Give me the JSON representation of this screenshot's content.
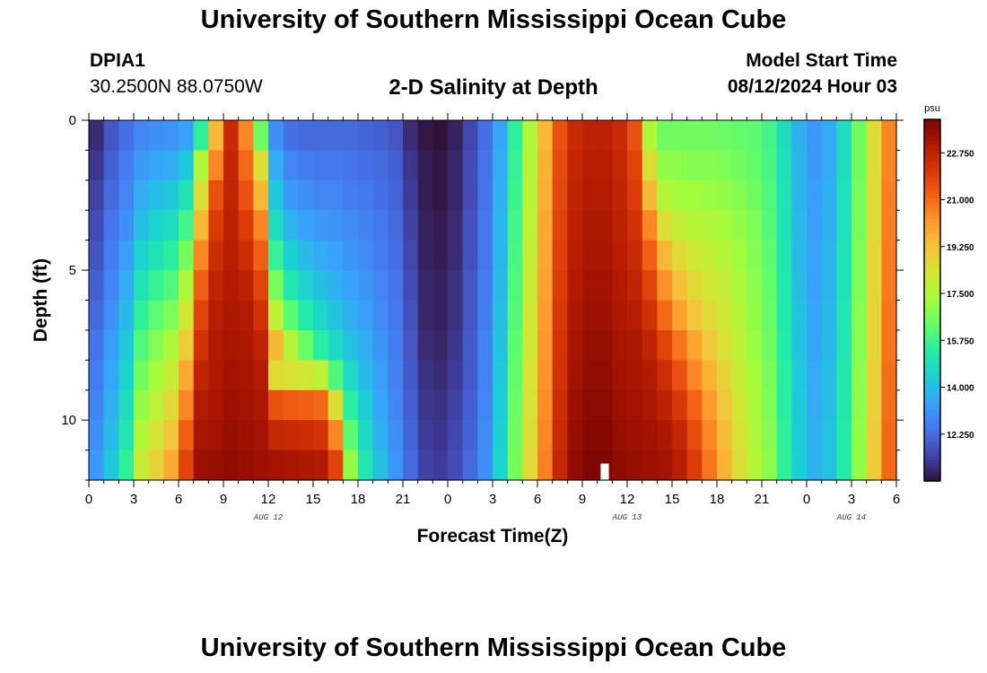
{
  "header": {
    "title": "University of Southern Mississippi Ocean Cube",
    "station_id": "DPIA1",
    "coordinates": "30.2500N  88.0750W",
    "subtitle": "2-D Salinity at Depth",
    "model_start_label": "Model Start Time",
    "model_start_value": "08/12/2024 Hour 03"
  },
  "footer": {
    "title": "University of Southern Mississippi Ocean Cube"
  },
  "colors": {
    "cmap_stops": [
      "#30123b",
      "#4145ab",
      "#4675ed",
      "#39a2fc",
      "#1bcfd4",
      "#24eca6",
      "#61fc6c",
      "#a4fc3b",
      "#d1e834",
      "#f3c63a",
      "#fe9b2d",
      "#f36315",
      "#d93806",
      "#b11901",
      "#7a0403"
    ],
    "missing_cell": "#ffffff"
  },
  "chart_data": {
    "type": "heatmap",
    "title": "2-D Salinity at Depth",
    "xlabel": "Forecast Time(Z)",
    "ylabel": "Depth (ft)",
    "x_range_hours": [
      0,
      54
    ],
    "x_tick_hours": [
      0,
      3,
      6,
      9,
      12,
      15,
      18,
      21,
      24,
      27,
      30,
      33,
      36,
      39,
      42,
      45,
      48,
      51,
      54
    ],
    "x_tick_labels": [
      "0",
      "3",
      "6",
      "9",
      "12",
      "15",
      "18",
      "21",
      "0",
      "3",
      "6",
      "9",
      "12",
      "15",
      "18",
      "21",
      "0",
      "3",
      "6"
    ],
    "date_labels": [
      {
        "hour": 12,
        "text": "AUG 12"
      },
      {
        "hour": 36,
        "text": "AUG 13"
      },
      {
        "hour": 51,
        "text": "AUG 14"
      }
    ],
    "y_range_ft": [
      0,
      12
    ],
    "y_tick_values": [
      0,
      5,
      10
    ],
    "y_tick_labels": [
      "0",
      "5",
      "10"
    ],
    "depth_levels_ft": [
      0.5,
      1.5,
      2.5,
      3.5,
      4.5,
      5.5,
      6.5,
      7.5,
      8.5,
      9.5,
      10.5,
      11.5
    ],
    "time_step_hours": 1,
    "colorbar": {
      "unit": "psu",
      "min": 10.5,
      "max": 24.0,
      "tick_values": [
        12.25,
        14.0,
        15.75,
        17.5,
        19.25,
        21.0,
        22.75
      ],
      "tick_labels": [
        "12.250",
        "14.000",
        "15.750",
        "17.500",
        "19.250",
        "21.000",
        "22.750"
      ]
    },
    "salinity_psu": [
      [
        11.0,
        11.8,
        12.3,
        12.8,
        13.0,
        13.1,
        13.4,
        15.5,
        19.5,
        22.5,
        20.5,
        16.5,
        13.0,
        12.3,
        12.2,
        12.2,
        12.2,
        12.2,
        12.1,
        12.0,
        11.8,
        11.0,
        10.6,
        10.5,
        10.8,
        11.5,
        12.3,
        13.5,
        15.5,
        17.5,
        19.5,
        21.5,
        22.5,
        22.8,
        22.8,
        22.5,
        21.5,
        17.5,
        16.5,
        16.5,
        16.5,
        16.5,
        16.4,
        16.3,
        16.2,
        15.8,
        14.8,
        13.7,
        13.2,
        13.6,
        14.8,
        16.5,
        18.5,
        20.5
      ],
      [
        11.2,
        12.0,
        12.6,
        13.2,
        13.5,
        13.6,
        14.2,
        17.5,
        20.5,
        22.6,
        21.0,
        18.5,
        13.6,
        12.8,
        12.6,
        12.5,
        12.5,
        12.4,
        12.3,
        12.2,
        12.0,
        11.2,
        10.7,
        10.6,
        10.9,
        11.6,
        12.4,
        13.6,
        15.6,
        17.6,
        19.6,
        21.6,
        22.6,
        22.9,
        22.9,
        22.6,
        21.8,
        18.5,
        17.0,
        16.9,
        16.8,
        16.8,
        16.7,
        16.5,
        16.3,
        15.9,
        14.9,
        13.8,
        13.2,
        13.6,
        14.8,
        16.5,
        18.5,
        20.5
      ],
      [
        11.4,
        12.2,
        12.8,
        13.6,
        14.0,
        14.2,
        15.0,
        18.5,
        21.5,
        22.7,
        21.5,
        19.5,
        14.2,
        13.2,
        13.0,
        12.8,
        12.8,
        12.6,
        12.5,
        12.3,
        12.1,
        11.3,
        10.7,
        10.6,
        10.9,
        11.6,
        12.4,
        13.7,
        15.7,
        17.7,
        19.7,
        21.7,
        22.7,
        23.0,
        23.0,
        22.7,
        22.0,
        19.5,
        17.6,
        17.3,
        17.2,
        17.1,
        17.0,
        16.8,
        16.5,
        16.0,
        15.0,
        13.8,
        13.3,
        13.7,
        14.9,
        16.6,
        18.6,
        20.6
      ],
      [
        11.6,
        12.4,
        13.0,
        14.0,
        14.5,
        14.8,
        15.8,
        19.5,
        22.0,
        22.8,
        22.0,
        20.5,
        14.8,
        13.8,
        13.4,
        13.2,
        13.1,
        12.9,
        12.7,
        12.5,
        12.2,
        11.4,
        10.8,
        10.7,
        11.0,
        11.7,
        12.5,
        13.8,
        15.8,
        17.8,
        19.8,
        21.8,
        22.8,
        23.1,
        23.1,
        22.8,
        22.3,
        20.5,
        18.5,
        17.9,
        17.6,
        17.5,
        17.3,
        17.0,
        16.7,
        16.1,
        15.0,
        13.9,
        13.3,
        13.7,
        14.9,
        16.6,
        18.6,
        20.6
      ],
      [
        11.8,
        12.6,
        13.3,
        14.5,
        15.0,
        15.4,
        16.6,
        20.5,
        22.4,
        22.9,
        22.4,
        21.2,
        15.6,
        14.4,
        13.9,
        13.6,
        13.4,
        13.1,
        12.9,
        12.6,
        12.3,
        11.5,
        10.8,
        10.7,
        11.0,
        11.7,
        12.5,
        13.8,
        15.9,
        17.9,
        19.9,
        21.9,
        22.9,
        23.2,
        23.2,
        22.9,
        22.5,
        21.2,
        19.5,
        18.6,
        18.1,
        17.9,
        17.6,
        17.2,
        16.8,
        16.2,
        15.1,
        13.9,
        13.4,
        13.8,
        15.0,
        16.7,
        18.7,
        20.7
      ],
      [
        12.0,
        12.8,
        13.6,
        15.0,
        15.6,
        16.0,
        17.4,
        21.2,
        22.7,
        23.0,
        22.8,
        21.8,
        16.6,
        15.2,
        14.5,
        14.0,
        13.7,
        13.4,
        13.1,
        12.8,
        12.4,
        11.6,
        10.9,
        10.8,
        11.1,
        11.8,
        12.6,
        13.9,
        16.0,
        18.0,
        20.0,
        22.0,
        23.0,
        23.3,
        23.3,
        23.0,
        22.7,
        21.8,
        20.3,
        19.3,
        18.6,
        18.2,
        17.9,
        17.4,
        16.9,
        16.3,
        15.2,
        14.0,
        13.4,
        13.8,
        15.0,
        16.7,
        18.7,
        20.7
      ],
      [
        12.2,
        13.0,
        13.9,
        15.5,
        16.2,
        16.7,
        18.2,
        21.8,
        22.9,
        23.1,
        23.0,
        22.3,
        17.8,
        16.2,
        15.3,
        14.6,
        14.1,
        13.7,
        13.3,
        12.9,
        12.5,
        11.7,
        10.9,
        10.8,
        11.1,
        11.8,
        12.6,
        14.0,
        16.1,
        18.1,
        20.1,
        22.1,
        23.1,
        23.4,
        23.4,
        23.1,
        22.9,
        22.3,
        21.0,
        20.0,
        19.2,
        18.6,
        18.1,
        17.6,
        17.0,
        16.4,
        15.2,
        14.1,
        13.5,
        13.9,
        15.1,
        16.8,
        18.8,
        20.8
      ],
      [
        12.4,
        13.3,
        14.2,
        16.0,
        16.8,
        17.4,
        19.0,
        22.3,
        23.0,
        23.2,
        23.1,
        22.7,
        19.5,
        17.6,
        16.4,
        15.4,
        14.7,
        14.1,
        13.6,
        13.1,
        12.6,
        11.8,
        11.0,
        10.9,
        11.2,
        11.9,
        12.7,
        14.1,
        16.2,
        18.2,
        20.2,
        22.2,
        23.2,
        23.5,
        23.5,
        23.2,
        23.1,
        22.7,
        21.8,
        20.8,
        19.9,
        19.1,
        18.4,
        17.8,
        17.1,
        16.5,
        15.3,
        14.1,
        13.5,
        13.9,
        15.1,
        16.8,
        18.8,
        20.8
      ],
      [
        12.6,
        13.5,
        14.5,
        16.5,
        17.3,
        18.0,
        19.8,
        22.7,
        23.1,
        23.3,
        23.2,
        23.0,
        18.6,
        18.4,
        18.2,
        17.8,
        16.0,
        14.7,
        13.9,
        13.3,
        12.7,
        11.9,
        11.1,
        11.0,
        11.3,
        11.9,
        12.7,
        14.2,
        16.3,
        18.3,
        20.3,
        22.3,
        23.3,
        23.6,
        23.6,
        23.3,
        23.2,
        23.0,
        22.4,
        21.5,
        20.5,
        19.6,
        18.8,
        18.0,
        17.3,
        16.6,
        15.4,
        14.2,
        13.6,
        14.0,
        15.2,
        16.9,
        18.9,
        20.9
      ],
      [
        12.8,
        13.7,
        14.8,
        17.0,
        17.8,
        18.6,
        20.5,
        23.0,
        23.2,
        23.4,
        23.3,
        23.1,
        21.5,
        21.3,
        21.2,
        21.0,
        18.5,
        15.4,
        14.3,
        13.5,
        12.8,
        12.0,
        11.2,
        11.1,
        11.4,
        12.0,
        12.8,
        14.3,
        16.4,
        18.4,
        20.4,
        22.4,
        23.4,
        23.7,
        23.7,
        23.4,
        23.3,
        23.1,
        22.8,
        22.1,
        21.1,
        20.1,
        19.1,
        18.2,
        17.4,
        16.7,
        15.4,
        14.3,
        13.6,
        14.0,
        15.2,
        16.9,
        18.9,
        20.9
      ],
      [
        13.0,
        13.9,
        15.1,
        17.5,
        18.3,
        19.2,
        21.2,
        23.2,
        23.3,
        23.5,
        23.4,
        23.3,
        22.6,
        22.5,
        22.4,
        22.2,
        20.5,
        16.2,
        14.7,
        13.7,
        13.0,
        12.1,
        11.3,
        11.2,
        11.5,
        12.1,
        12.9,
        14.4,
        16.5,
        18.5,
        20.5,
        22.5,
        23.5,
        23.8,
        23.8,
        23.5,
        23.4,
        23.3,
        23.1,
        22.6,
        21.6,
        20.5,
        19.4,
        18.4,
        17.5,
        16.8,
        15.5,
        14.3,
        13.7,
        14.1,
        15.3,
        17.0,
        19.0,
        21.0
      ],
      [
        13.2,
        14.2,
        15.5,
        18.0,
        18.8,
        19.8,
        21.8,
        23.4,
        23.5,
        23.6,
        23.5,
        23.4,
        23.3,
        23.2,
        23.1,
        23.0,
        21.8,
        17.0,
        15.1,
        14.0,
        13.1,
        12.2,
        11.4,
        11.3,
        11.6,
        12.2,
        13.0,
        14.5,
        16.6,
        18.6,
        20.6,
        22.6,
        23.6,
        23.9,
        23.9,
        23.6,
        23.5,
        23.4,
        23.3,
        22.9,
        22.0,
        20.8,
        19.6,
        18.5,
        17.6,
        16.9,
        15.5,
        14.4,
        13.7,
        14.1,
        15.3,
        17.0,
        19.0,
        21.0
      ]
    ],
    "missing_cells": [
      {
        "hour_index": 34,
        "depth_index": 11
      }
    ]
  }
}
